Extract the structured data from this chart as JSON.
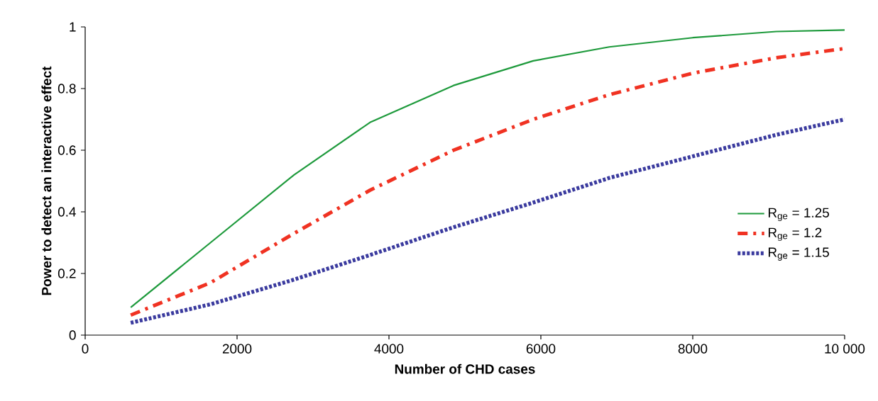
{
  "chart_data": {
    "type": "line",
    "xlabel": "Number of CHD cases",
    "ylabel": "Power to detect an interactive effect",
    "x": [
      600,
      1650,
      2750,
      3750,
      4850,
      5900,
      6900,
      8000,
      9100,
      10000
    ],
    "series": [
      {
        "name": "R$_{ge}$ = 1.25",
        "color": "#1e9a3c",
        "line_style": "solid",
        "values": [
          0.09,
          0.3,
          0.52,
          0.69,
          0.81,
          0.89,
          0.935,
          0.965,
          0.985,
          0.99
        ]
      },
      {
        "name": "R$_{ge}$ = 1.2",
        "color": "#f03222",
        "line_style": "dashdot",
        "values": [
          0.065,
          0.17,
          0.33,
          0.47,
          0.6,
          0.7,
          0.78,
          0.85,
          0.9,
          0.93
        ]
      },
      {
        "name": "R$_{ge}$ = 1.15",
        "color": "#3a3a9e",
        "line_style": "dotted",
        "values": [
          0.04,
          0.1,
          0.18,
          0.26,
          0.35,
          0.43,
          0.51,
          0.58,
          0.65,
          0.7
        ]
      }
    ],
    "xlim": [
      0,
      10000
    ],
    "ylim": [
      0,
      1
    ],
    "xticks": [
      0,
      2000,
      4000,
      6000,
      8000,
      {
        "value": 10000,
        "label": "10 000"
      }
    ],
    "yticks": [
      0,
      0.2,
      0.4,
      0.6,
      0.8,
      1
    ],
    "grid": false,
    "legend": "right",
    "marker": "none"
  }
}
